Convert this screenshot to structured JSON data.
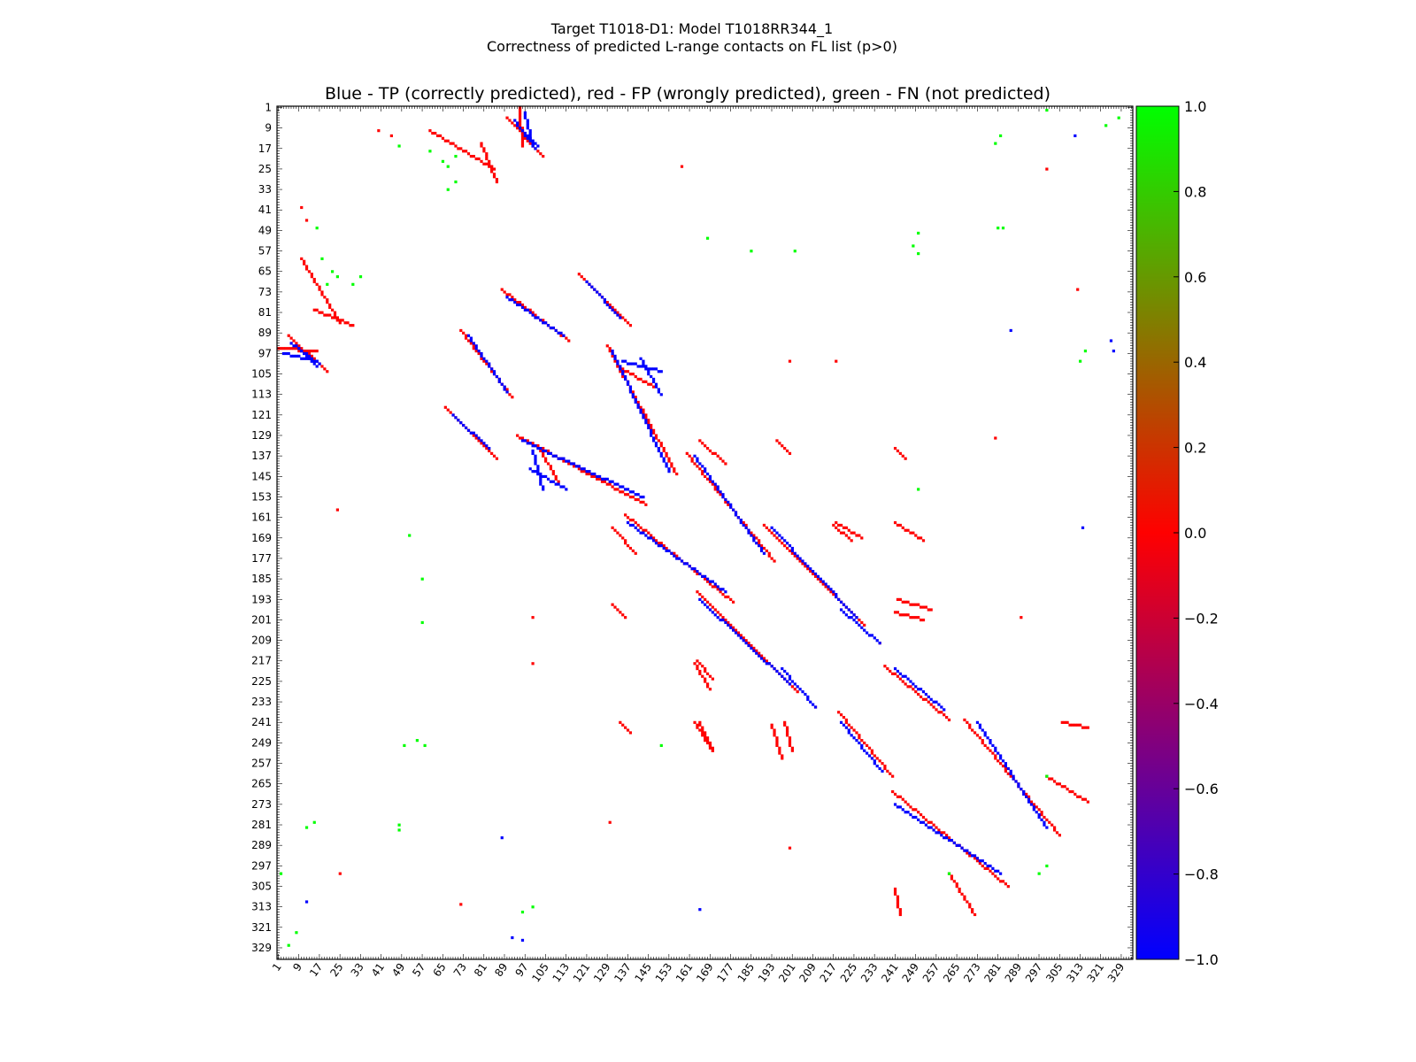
{
  "chart_data": {
    "type": "heatmap",
    "title": "Target T1018-D1: Model T1018RR344_1",
    "subtitle": "Correctness of predicted L-range contacts on FL list (p>0)",
    "plot_title": "Blue - TP (correctly predicted), red - FP (wrongly predicted), green - FN (not predicted)",
    "xlabel": "",
    "ylabel": "",
    "axis_range": [
      1,
      333
    ],
    "tick_labels": [
      "1",
      "9",
      "17",
      "25",
      "33",
      "41",
      "49",
      "57",
      "65",
      "73",
      "81",
      "89",
      "97",
      "105",
      "113",
      "121",
      "129",
      "137",
      "145",
      "153",
      "161",
      "169",
      "177",
      "185",
      "193",
      "201",
      "209",
      "217",
      "225",
      "233",
      "241",
      "249",
      "257",
      "265",
      "273",
      "281",
      "289",
      "297",
      "305",
      "313",
      "321",
      "329"
    ],
    "colorbar": {
      "range": [
        -1.0,
        1.0
      ],
      "ticks": [
        "1.0",
        "0.8",
        "0.6",
        "0.4",
        "0.2",
        "0.0",
        "−0.2",
        "−0.4",
        "−0.6",
        "−0.8",
        "−1.0"
      ],
      "colors": [
        "#0000ff",
        "#ff0000",
        "#00ff00"
      ]
    },
    "categories": [
      {
        "name": "TP (correctly predicted)",
        "value": -1.0,
        "color": "#0000ff"
      },
      {
        "name": "FP (wrongly predicted)",
        "value": 0.0,
        "color": "#ff0000"
      },
      {
        "name": "FN (not predicted)",
        "value": 1.0,
        "color": "#00ff00"
      }
    ],
    "segments": [
      {
        "cls": "tp",
        "start": [
          93,
          6
        ],
        "end": [
          101,
          17
        ]
      },
      {
        "cls": "tp",
        "start": [
          6,
          93
        ],
        "end": [
          17,
          101
        ]
      },
      {
        "cls": "fp",
        "start": [
          90,
          5
        ],
        "end": [
          104,
          20
        ]
      },
      {
        "cls": "fp",
        "start": [
          5,
          90
        ],
        "end": [
          20,
          104
        ]
      },
      {
        "cls": "tp",
        "start": [
          9,
          95
        ],
        "end": [
          16,
          102
        ]
      },
      {
        "cls": "tp",
        "start": [
          95,
          9
        ],
        "end": [
          102,
          16
        ]
      },
      {
        "cls": "tp",
        "start": [
          96,
          131
        ],
        "end": [
          143,
          153
        ]
      },
      {
        "cls": "tp",
        "start": [
          131,
          96
        ],
        "end": [
          153,
          143
        ]
      },
      {
        "cls": "fp",
        "start": [
          94,
          129
        ],
        "end": [
          144,
          156
        ]
      },
      {
        "cls": "fp",
        "start": [
          129,
          94
        ],
        "end": [
          156,
          144
        ]
      },
      {
        "cls": "tp",
        "start": [
          137,
          163
        ],
        "end": [
          175,
          190
        ]
      },
      {
        "cls": "tp",
        "start": [
          163,
          137
        ],
        "end": [
          190,
          175
        ]
      },
      {
        "cls": "fp",
        "start": [
          136,
          160
        ],
        "end": [
          178,
          194
        ]
      },
      {
        "cls": "fp",
        "start": [
          160,
          136
        ],
        "end": [
          194,
          178
        ]
      },
      {
        "cls": "tp",
        "start": [
          165,
          193
        ],
        "end": [
          200,
          226
        ]
      },
      {
        "cls": "tp",
        "start": [
          193,
          165
        ],
        "end": [
          226,
          200
        ]
      },
      {
        "cls": "fp",
        "start": [
          164,
          190
        ],
        "end": [
          203,
          229
        ]
      },
      {
        "cls": "fp",
        "start": [
          190,
          164
        ],
        "end": [
          229,
          203
        ]
      },
      {
        "cls": "tp",
        "start": [
          197,
          220
        ],
        "end": [
          210,
          235
        ]
      },
      {
        "cls": "tp",
        "start": [
          220,
          197
        ],
        "end": [
          235,
          210
        ]
      },
      {
        "cls": "tp",
        "start": [
          241,
          273
        ],
        "end": [
          282,
          300
        ]
      },
      {
        "cls": "tp",
        "start": [
          273,
          241
        ],
        "end": [
          300,
          282
        ]
      },
      {
        "cls": "fp",
        "start": [
          240,
          268
        ],
        "end": [
          285,
          305
        ]
      },
      {
        "cls": "fp",
        "start": [
          268,
          240
        ],
        "end": [
          305,
          285
        ]
      },
      {
        "cls": "tp",
        "start": [
          220,
          241
        ],
        "end": [
          236,
          260
        ]
      },
      {
        "cls": "tp",
        "start": [
          241,
          220
        ],
        "end": [
          260,
          236
        ]
      },
      {
        "cls": "fp",
        "start": [
          219,
          237
        ],
        "end": [
          240,
          262
        ]
      },
      {
        "cls": "fp",
        "start": [
          237,
          219
        ],
        "end": [
          262,
          240
        ]
      },
      {
        "cls": "tp",
        "start": [
          97,
          3
        ],
        "end": [
          100,
          16
        ]
      },
      {
        "cls": "fp",
        "start": [
          95,
          1
        ],
        "end": [
          96,
          16
        ]
      },
      {
        "cls": "tp",
        "start": [
          3,
          97
        ],
        "end": [
          16,
          100
        ]
      },
      {
        "cls": "fp",
        "start": [
          1,
          95
        ],
        "end": [
          16,
          96
        ]
      },
      {
        "cls": "tp",
        "start": [
          100,
          135
        ],
        "end": [
          104,
          150
        ]
      },
      {
        "cls": "tp",
        "start": [
          135,
          100
        ],
        "end": [
          150,
          104
        ]
      },
      {
        "cls": "fp",
        "start": [
          102,
          133
        ],
        "end": [
          110,
          147
        ]
      },
      {
        "cls": "fp",
        "start": [
          133,
          102
        ],
        "end": [
          147,
          110
        ]
      },
      {
        "cls": "tp",
        "start": [
          75,
          90
        ],
        "end": [
          90,
          112
        ]
      },
      {
        "cls": "tp",
        "start": [
          90,
          75
        ],
        "end": [
          112,
          90
        ]
      },
      {
        "cls": "fp",
        "start": [
          72,
          88
        ],
        "end": [
          92,
          114
        ]
      },
      {
        "cls": "fp",
        "start": [
          88,
          72
        ],
        "end": [
          114,
          92
        ]
      },
      {
        "cls": "tp",
        "start": [
          121,
          69
        ],
        "end": [
          134,
          83
        ]
      },
      {
        "cls": "tp",
        "start": [
          69,
          121
        ],
        "end": [
          83,
          134
        ]
      },
      {
        "cls": "fp",
        "start": [
          118,
          66
        ],
        "end": [
          138,
          86
        ]
      },
      {
        "cls": "fp",
        "start": [
          66,
          118
        ],
        "end": [
          86,
          138
        ]
      },
      {
        "cls": "tp",
        "start": [
          142,
          99
        ],
        "end": [
          150,
          113
        ]
      },
      {
        "cls": "tp",
        "start": [
          99,
          142
        ],
        "end": [
          113,
          150
        ]
      },
      {
        "cls": "fp",
        "start": [
          15,
          80
        ],
        "end": [
          30,
          86
        ]
      },
      {
        "cls": "fp",
        "start": [
          80,
          15
        ],
        "end": [
          86,
          30
        ]
      },
      {
        "cls": "fp",
        "start": [
          60,
          10
        ],
        "end": [
          85,
          25
        ]
      },
      {
        "cls": "fp",
        "start": [
          10,
          60
        ],
        "end": [
          25,
          85
        ]
      },
      {
        "cls": "fp",
        "start": [
          165,
          131
        ],
        "end": [
          175,
          140
        ]
      },
      {
        "cls": "fp",
        "start": [
          131,
          165
        ],
        "end": [
          140,
          175
        ]
      },
      {
        "cls": "fp",
        "start": [
          195,
          131
        ],
        "end": [
          200,
          136
        ]
      },
      {
        "cls": "fp",
        "start": [
          131,
          195
        ],
        "end": [
          136,
          200
        ]
      },
      {
        "cls": "fp",
        "start": [
          218,
          163
        ],
        "end": [
          228,
          169
        ]
      },
      {
        "cls": "fp",
        "start": [
          163,
          218
        ],
        "end": [
          169,
          228
        ]
      },
      {
        "cls": "fp",
        "start": [
          241,
          163
        ],
        "end": [
          252,
          170
        ]
      },
      {
        "cls": "fp",
        "start": [
          163,
          241
        ],
        "end": [
          170,
          252
        ]
      },
      {
        "cls": "fp",
        "start": [
          241,
          134
        ],
        "end": [
          245,
          138
        ]
      },
      {
        "cls": "fp",
        "start": [
          134,
          241
        ],
        "end": [
          138,
          245
        ]
      },
      {
        "cls": "fp",
        "start": [
          242,
          193
        ],
        "end": [
          255,
          197
        ]
      },
      {
        "cls": "fp",
        "start": [
          193,
          242
        ],
        "end": [
          197,
          255
        ]
      },
      {
        "cls": "fp",
        "start": [
          165,
          241
        ],
        "end": [
          170,
          252
        ]
      },
      {
        "cls": "fp",
        "start": [
          164,
          217
        ],
        "end": [
          170,
          224
        ]
      },
      {
        "cls": "fp",
        "start": [
          217,
          164
        ],
        "end": [
          224,
          170
        ]
      },
      {
        "cls": "fp",
        "start": [
          198,
          241
        ],
        "end": [
          201,
          252
        ]
      },
      {
        "cls": "fp",
        "start": [
          241,
          198
        ],
        "end": [
          252,
          201
        ]
      },
      {
        "cls": "fp",
        "start": [
          306,
          241
        ],
        "end": [
          316,
          243
        ]
      },
      {
        "cls": "fp",
        "start": [
          241,
          306
        ],
        "end": [
          243,
          316
        ]
      },
      {
        "cls": "fp",
        "start": [
          300,
          262
        ],
        "end": [
          316,
          272
        ]
      },
      {
        "cls": "fp",
        "start": [
          262,
          300
        ],
        "end": [
          272,
          316
        ]
      }
    ],
    "points": [
      {
        "cls": "fn",
        "x": 18,
        "y": 60
      },
      {
        "cls": "fn",
        "x": 60,
        "y": 18
      },
      {
        "cls": "fn",
        "x": 20,
        "y": 70
      },
      {
        "cls": "fn",
        "x": 70,
        "y": 20
      },
      {
        "cls": "fn",
        "x": 24,
        "y": 67
      },
      {
        "cls": "fn",
        "x": 67,
        "y": 24
      },
      {
        "cls": "fn",
        "x": 16,
        "y": 48
      },
      {
        "cls": "fn",
        "x": 48,
        "y": 16
      },
      {
        "cls": "fn",
        "x": 65,
        "y": 22
      },
      {
        "cls": "fn",
        "x": 22,
        "y": 65
      },
      {
        "cls": "fn",
        "x": 70,
        "y": 30
      },
      {
        "cls": "fn",
        "x": 30,
        "y": 70
      },
      {
        "cls": "fn",
        "x": 67,
        "y": 33
      },
      {
        "cls": "fn",
        "x": 33,
        "y": 67
      },
      {
        "cls": "fn",
        "x": 248,
        "y": 55
      },
      {
        "cls": "fn",
        "x": 55,
        "y": 248
      },
      {
        "cls": "fn",
        "x": 250,
        "y": 58
      },
      {
        "cls": "fn",
        "x": 58,
        "y": 250
      },
      {
        "cls": "fn",
        "x": 281,
        "y": 48
      },
      {
        "cls": "fn",
        "x": 48,
        "y": 281
      },
      {
        "cls": "fn",
        "x": 282,
        "y": 12
      },
      {
        "cls": "fn",
        "x": 12,
        "y": 282
      },
      {
        "cls": "fn",
        "x": 280,
        "y": 15
      },
      {
        "cls": "fn",
        "x": 15,
        "y": 280
      },
      {
        "cls": "fn",
        "x": 185,
        "y": 57
      },
      {
        "cls": "fn",
        "x": 57,
        "y": 185
      },
      {
        "cls": "fn",
        "x": 202,
        "y": 57
      },
      {
        "cls": "fn",
        "x": 57,
        "y": 202
      },
      {
        "cls": "fn",
        "x": 323,
        "y": 8
      },
      {
        "cls": "fn",
        "x": 8,
        "y": 323
      },
      {
        "cls": "fn",
        "x": 328,
        "y": 5
      },
      {
        "cls": "fn",
        "x": 5,
        "y": 328
      },
      {
        "cls": "fn",
        "x": 313,
        "y": 100
      },
      {
        "cls": "fn",
        "x": 100,
        "y": 313
      },
      {
        "cls": "fn",
        "x": 250,
        "y": 150
      },
      {
        "cls": "fn",
        "x": 150,
        "y": 250
      },
      {
        "cls": "fn",
        "x": 52,
        "y": 168
      },
      {
        "cls": "fn",
        "x": 168,
        "y": 52
      },
      {
        "cls": "fn",
        "x": 50,
        "y": 250
      },
      {
        "cls": "fn",
        "x": 250,
        "y": 50
      },
      {
        "cls": "fn",
        "x": 48,
        "y": 283
      },
      {
        "cls": "fn",
        "x": 283,
        "y": 48
      },
      {
        "cls": "fn",
        "x": 300,
        "y": 262
      },
      {
        "cls": "fn",
        "x": 262,
        "y": 300
      },
      {
        "cls": "fn",
        "x": 297,
        "y": 300
      },
      {
        "cls": "fn",
        "x": 300,
        "y": 297
      },
      {
        "cls": "fn",
        "x": 315,
        "y": 96
      },
      {
        "cls": "fn",
        "x": 96,
        "y": 315
      },
      {
        "cls": "fn",
        "x": 300,
        "y": 2
      },
      {
        "cls": "fn",
        "x": 2,
        "y": 300
      },
      {
        "cls": "tp",
        "x": 326,
        "y": 96
      },
      {
        "cls": "tp",
        "x": 96,
        "y": 326
      },
      {
        "cls": "tp",
        "x": 314,
        "y": 165
      },
      {
        "cls": "tp",
        "x": 165,
        "y": 314
      },
      {
        "cls": "tp",
        "x": 311,
        "y": 12
      },
      {
        "cls": "tp",
        "x": 12,
        "y": 311
      },
      {
        "cls": "tp",
        "x": 88,
        "y": 286
      },
      {
        "cls": "tp",
        "x": 286,
        "y": 88
      },
      {
        "cls": "tp",
        "x": 92,
        "y": 325
      },
      {
        "cls": "tp",
        "x": 325,
        "y": 92
      },
      {
        "cls": "fp",
        "x": 40,
        "y": 10
      },
      {
        "cls": "fp",
        "x": 10,
        "y": 40
      },
      {
        "cls": "fp",
        "x": 45,
        "y": 12
      },
      {
        "cls": "fp",
        "x": 12,
        "y": 45
      },
      {
        "cls": "fp",
        "x": 158,
        "y": 24
      },
      {
        "cls": "fp",
        "x": 24,
        "y": 158
      },
      {
        "cls": "fp",
        "x": 200,
        "y": 100
      },
      {
        "cls": "fp",
        "x": 100,
        "y": 200
      },
      {
        "cls": "fp",
        "x": 218,
        "y": 100
      },
      {
        "cls": "fp",
        "x": 100,
        "y": 218
      },
      {
        "cls": "fp",
        "x": 300,
        "y": 25
      },
      {
        "cls": "fp",
        "x": 25,
        "y": 300
      },
      {
        "cls": "fp",
        "x": 312,
        "y": 72
      },
      {
        "cls": "fp",
        "x": 72,
        "y": 312
      },
      {
        "cls": "fp",
        "x": 235,
        "y": 210
      },
      {
        "cls": "fp",
        "x": 210,
        "y": 235
      },
      {
        "cls": "fp",
        "x": 280,
        "y": 130
      },
      {
        "cls": "fp",
        "x": 130,
        "y": 280
      },
      {
        "cls": "fp",
        "x": 290,
        "y": 200
      },
      {
        "cls": "fp",
        "x": 200,
        "y": 290
      }
    ]
  }
}
